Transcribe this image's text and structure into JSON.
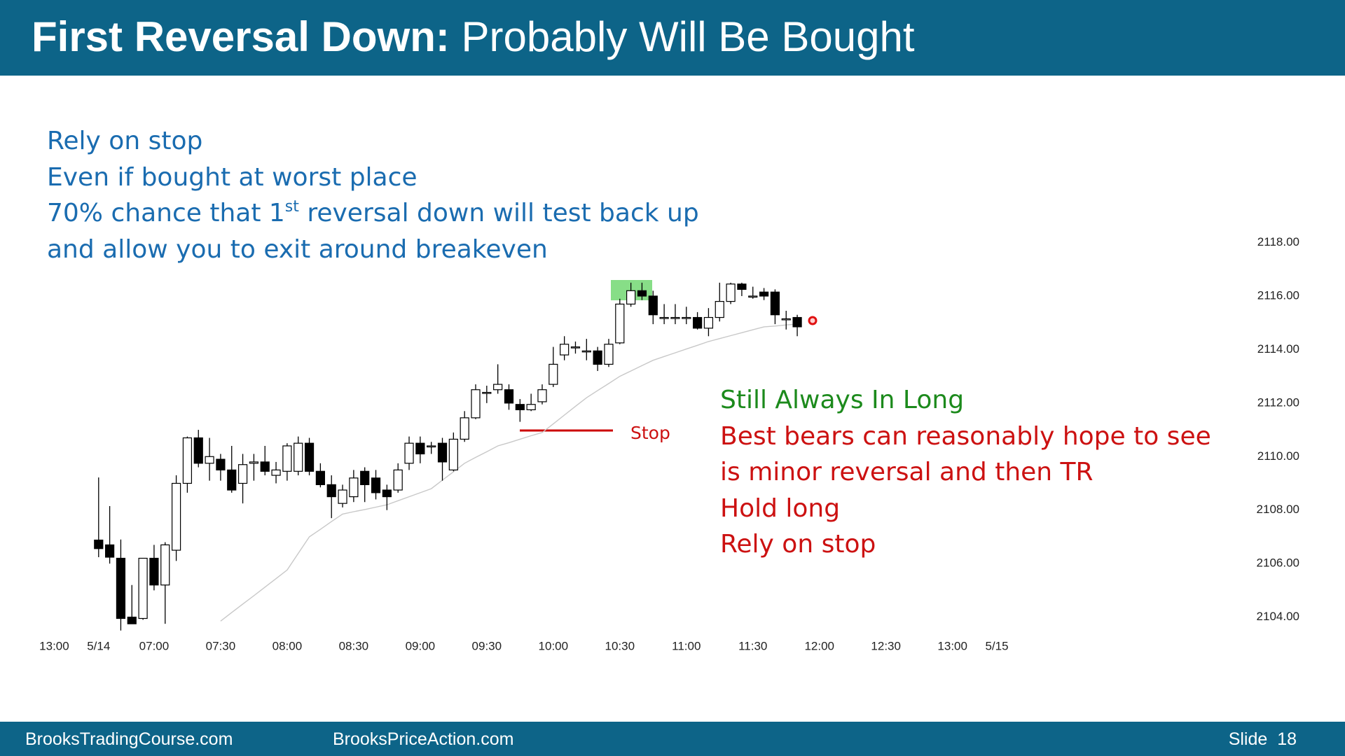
{
  "slide": {
    "title_bold": "First Reversal Down:",
    "title_rest": "Probably Will Be Bought",
    "notes": [
      {
        "text": "Rely on stop"
      },
      {
        "text": "Even if bought at worst place"
      },
      {
        "text": "70% chance that 1",
        "sup": "st",
        "rest": " reversal down will test back up"
      },
      {
        "text": "and allow you to exit around breakeven"
      }
    ],
    "comment_headline": "Still Always In Long",
    "comment_lines": [
      "Best bears can reasonably hope to see",
      "is minor reversal and then TR",
      "Hold long",
      "Rely on stop"
    ],
    "footer_left": "BrooksTradingCourse.com",
    "footer_mid": "BrooksPriceAction.com",
    "footer_slide": "Slide",
    "footer_number": "18"
  },
  "chart_data": {
    "type": "candlestick",
    "x": [
      0,
      1,
      2,
      3,
      4,
      5,
      6,
      7,
      8,
      9,
      10,
      11,
      12,
      13,
      14,
      15,
      16,
      17,
      18,
      19,
      20,
      21,
      22,
      23,
      24,
      25,
      26,
      27,
      28,
      29,
      30,
      31,
      32,
      33,
      34,
      35,
      36,
      37,
      38,
      39,
      40,
      41,
      42,
      43,
      44,
      45,
      46,
      47,
      48,
      49,
      50,
      51,
      52,
      53,
      54,
      55,
      56,
      57,
      58,
      59,
      60,
      61,
      62,
      63
    ],
    "open": [
      2106.88,
      2106.7,
      2106.2,
      2104.0,
      2103.95,
      2106.2,
      2105.2,
      2106.5,
      2109.0,
      2110.7,
      2109.75,
      2109.9,
      2109.5,
      2109.0,
      2109.75,
      2109.8,
      2109.3,
      2109.45,
      2109.45,
      2110.5,
      2109.45,
      2108.95,
      2108.25,
      2108.5,
      2109.45,
      2109.2,
      2108.75,
      2108.75,
      2109.75,
      2110.5,
      2110.4,
      2110.5,
      2109.5,
      2110.65,
      2111.45,
      2112.4,
      2112.5,
      2112.5,
      2111.95,
      2111.75,
      2112.05,
      2112.7,
      2113.8,
      2114.1,
      2113.95,
      2113.95,
      2113.45,
      2114.25,
      2115.7,
      2116.2,
      2116.0,
      2115.2,
      2115.2,
      2115.2,
      2115.2,
      2114.8,
      2115.2,
      2115.8,
      2116.45,
      2116.0,
      2116.15,
      2116.15,
      2115.15,
      2115.2
    ],
    "high": [
      2109.22,
      2108.15,
      2106.9,
      2105.2,
      2106.2,
      2106.7,
      2106.8,
      2109.3,
      2110.75,
      2111.0,
      2110.7,
      2110.1,
      2110.4,
      2110.1,
      2110.1,
      2110.4,
      2109.8,
      2110.5,
      2110.75,
      2110.7,
      2109.75,
      2109.3,
      2108.95,
      2109.5,
      2109.6,
      2109.5,
      2108.95,
      2109.75,
      2110.75,
      2110.75,
      2110.55,
      2110.7,
      2110.9,
      2111.7,
      2112.7,
      2112.65,
      2113.45,
      2112.7,
      2112.15,
      2112.35,
      2112.7,
      2114.1,
      2114.5,
      2114.3,
      2114.4,
      2114.1,
      2114.4,
      2115.9,
      2116.5,
      2116.5,
      2116.2,
      2115.7,
      2115.7,
      2115.6,
      2115.4,
      2115.55,
      2116.5,
      2116.5,
      2116.5,
      2116.35,
      2116.3,
      2116.25,
      2115.45,
      2115.3
    ],
    "low": [
      2106.24,
      2106.0,
      2103.5,
      2103.75,
      2103.9,
      2105.0,
      2103.75,
      2106.1,
      2108.65,
      2109.6,
      2109.1,
      2109.1,
      2108.65,
      2108.25,
      2109.1,
      2109.3,
      2109.0,
      2109.1,
      2109.3,
      2109.3,
      2108.85,
      2107.7,
      2108.1,
      2108.3,
      2108.3,
      2108.4,
      2108.0,
      2108.65,
      2109.5,
      2109.75,
      2110.1,
      2109.1,
      2109.45,
      2110.55,
      2111.4,
      2112.0,
      2112.35,
      2111.75,
      2111.3,
      2111.7,
      2111.95,
      2112.6,
      2113.6,
      2113.85,
      2113.6,
      2113.2,
      2113.35,
      2114.2,
      2115.6,
      2115.85,
      2114.95,
      2114.95,
      2114.95,
      2114.95,
      2114.75,
      2114.5,
      2115.05,
      2115.7,
      2116.0,
      2115.9,
      2115.85,
      2114.95,
      2114.75,
      2114.5
    ],
    "close": [
      2106.56,
      2106.24,
      2103.95,
      2103.75,
      2106.2,
      2105.2,
      2106.7,
      2109.0,
      2110.7,
      2109.75,
      2110.0,
      2109.5,
      2108.75,
      2109.7,
      2109.8,
      2109.45,
      2109.5,
      2110.4,
      2110.5,
      2109.45,
      2108.95,
      2108.5,
      2108.75,
      2109.2,
      2108.95,
      2108.65,
      2108.5,
      2109.5,
      2110.5,
      2110.1,
      2110.4,
      2109.8,
      2110.65,
      2111.45,
      2112.5,
      2112.4,
      2112.7,
      2112.0,
      2111.75,
      2111.95,
      2112.5,
      2113.45,
      2114.2,
      2114.1,
      2113.95,
      2113.45,
      2114.2,
      2115.7,
      2116.2,
      2116.0,
      2115.3,
      2115.2,
      2115.2,
      2115.2,
      2114.8,
      2115.2,
      2115.8,
      2116.45,
      2116.25,
      2116.0,
      2116.0,
      2115.3,
      2115.15,
      2114.85
    ],
    "up_color": "#ffffff",
    "down_color": "#000000",
    "ma": {
      "color": "#c8c8c8",
      "values": [
        null,
        null,
        null,
        null,
        null,
        null,
        null,
        null,
        null,
        null,
        null,
        2103.85,
        2104.17,
        2104.49,
        2104.8,
        2105.12,
        2105.44,
        2105.76,
        2106.38,
        2107.0,
        2107.28,
        2107.57,
        2107.85,
        2107.94,
        2108.02,
        2108.11,
        2108.2,
        2108.35,
        2108.5,
        2108.65,
        2108.8,
        2109.12,
        2109.43,
        2109.75,
        2109.97,
        2110.18,
        2110.4,
        2110.52,
        2110.65,
        2110.78,
        2110.9,
        2111.22,
        2111.55,
        2111.88,
        2112.2,
        2112.47,
        2112.73,
        2113.0,
        2113.2,
        2113.4,
        2113.6,
        2113.74,
        2113.88,
        2114.02,
        2114.16,
        2114.3,
        2114.41,
        2114.52,
        2114.63,
        2114.74,
        2114.85,
        2114.88,
        2114.92,
        2114.95
      ]
    },
    "stop_label": "Stop",
    "xlim": [
      -6,
      84
    ],
    "xticks": [
      {
        "value": -4,
        "label": "13:00"
      },
      {
        "value": 0,
        "label": "5/14"
      },
      {
        "value": 5,
        "label": "07:00"
      },
      {
        "value": 11,
        "label": "07:30"
      },
      {
        "value": 17,
        "label": "08:00"
      },
      {
        "value": 23,
        "label": "08:30"
      },
      {
        "value": 29,
        "label": "09:00"
      },
      {
        "value": 35,
        "label": "09:30"
      },
      {
        "value": 41,
        "label": "10:00"
      },
      {
        "value": 47,
        "label": "10:30"
      },
      {
        "value": 53,
        "label": "11:00"
      },
      {
        "value": 59,
        "label": "11:30"
      },
      {
        "value": 65,
        "label": "12:00"
      },
      {
        "value": 71,
        "label": "12:30"
      },
      {
        "value": 77,
        "label": "13:00"
      },
      {
        "value": 81,
        "label": "5/15"
      }
    ],
    "ylim": [
      2103.5,
      2119
    ],
    "yticks": [
      {
        "value": 2104,
        "label": "2104.00"
      },
      {
        "value": 2106,
        "label": "2106.00"
      },
      {
        "value": 2108,
        "label": "2108.00"
      },
      {
        "value": 2110,
        "label": "2110.00"
      },
      {
        "value": 2112,
        "label": "2112.00"
      },
      {
        "value": 2114,
        "label": "2114.00"
      },
      {
        "value": 2116,
        "label": "2116.00"
      },
      {
        "value": 2118,
        "label": "2118.00"
      }
    ],
    "grid": false
  }
}
